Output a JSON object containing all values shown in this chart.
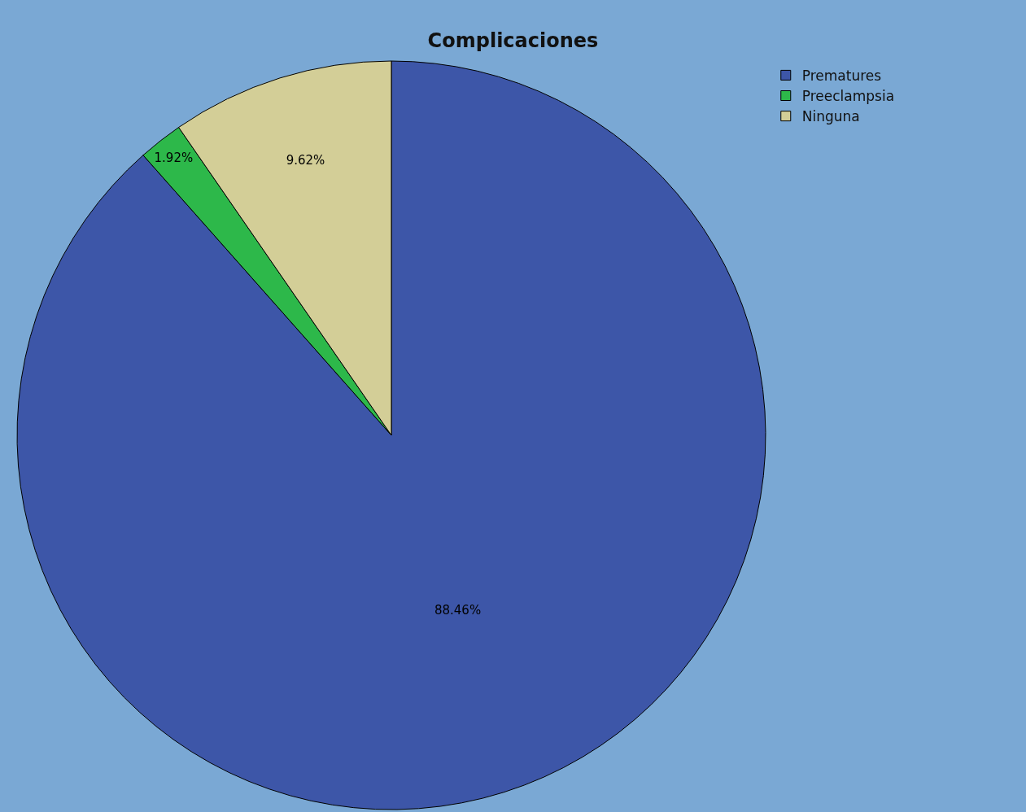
{
  "chart_data": {
    "type": "pie",
    "title": "Complicaciones",
    "categories": [
      "Prematures",
      "Preeclampsia",
      "Ninguna"
    ],
    "values": [
      88.46,
      1.92,
      9.62
    ],
    "value_labels": [
      "88.46%",
      "1.92%",
      "9.62%"
    ],
    "colors": [
      "#3d56a8",
      "#2db84a",
      "#d3ce97"
    ],
    "legend": "top right"
  }
}
